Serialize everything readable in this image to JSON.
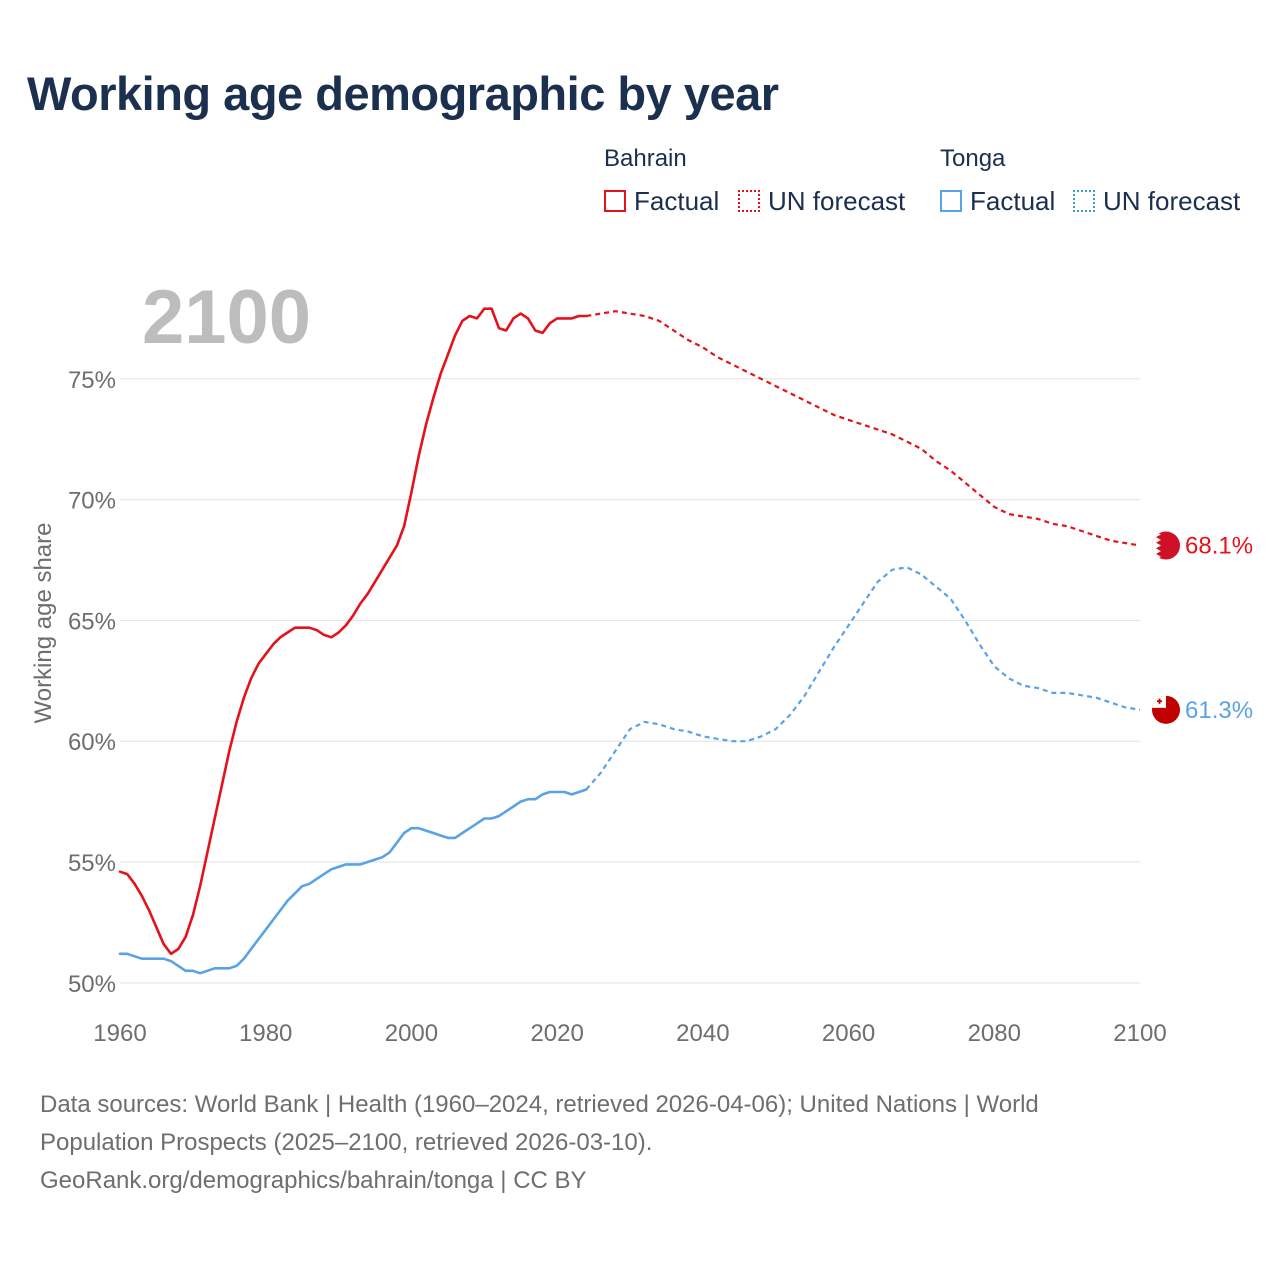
{
  "chart_data": {
    "type": "line",
    "title": "Working age demographic by year",
    "ylabel": "Working age share",
    "xlabel": "",
    "xlim": [
      1960,
      2100
    ],
    "ylim": [
      49,
      80
    ],
    "x_ticks": [
      "1960",
      "1980",
      "2000",
      "2020",
      "2040",
      "2060",
      "2080",
      "2100"
    ],
    "y_ticks": [
      "50%",
      "55%",
      "60%",
      "65%",
      "70%",
      "75%"
    ],
    "year_watermark": "2100",
    "legend": {
      "groups": [
        {
          "title": "Bahrain",
          "items": [
            {
              "label": "Factual"
            },
            {
              "label": "UN forecast"
            }
          ]
        },
        {
          "title": "Tonga",
          "items": [
            {
              "label": "Factual"
            },
            {
              "label": "UN forecast"
            }
          ]
        }
      ]
    },
    "series": [
      {
        "name": "Bahrain",
        "color": "#e3121b",
        "end_label": "68.1%",
        "factual_x": [
          1960,
          1961,
          1962,
          1963,
          1964,
          1965,
          1966,
          1967,
          1968,
          1969,
          1970,
          1971,
          1972,
          1973,
          1974,
          1975,
          1976,
          1977,
          1978,
          1979,
          1980,
          1981,
          1982,
          1983,
          1984,
          1985,
          1986,
          1987,
          1988,
          1989,
          1990,
          1991,
          1992,
          1993,
          1994,
          1995,
          1996,
          1997,
          1998,
          1999,
          2000,
          2001,
          2002,
          2003,
          2004,
          2005,
          2006,
          2007,
          2008,
          2009,
          2010,
          2011,
          2012,
          2013,
          2014,
          2015,
          2016,
          2017,
          2018,
          2019,
          2020,
          2021,
          2022,
          2023,
          2024
        ],
        "factual_y": [
          54.6,
          54.5,
          54.1,
          53.6,
          53.0,
          52.3,
          51.6,
          51.2,
          51.4,
          51.9,
          52.8,
          54.0,
          55.4,
          56.8,
          58.2,
          59.6,
          60.8,
          61.8,
          62.6,
          63.2,
          63.6,
          64.0,
          64.3,
          64.5,
          64.7,
          64.7,
          64.7,
          64.6,
          64.4,
          64.3,
          64.5,
          64.8,
          65.2,
          65.7,
          66.1,
          66.6,
          67.1,
          67.6,
          68.1,
          68.9,
          70.3,
          71.8,
          73.1,
          74.2,
          75.2,
          76.0,
          76.8,
          77.4,
          77.6,
          77.5,
          77.9,
          77.9,
          77.1,
          77.0,
          77.5,
          77.7,
          77.5,
          77.0,
          76.9,
          77.3,
          77.5,
          77.5,
          77.5,
          77.6,
          77.6
        ],
        "forecast_x": [
          2024,
          2026,
          2028,
          2030,
          2032,
          2034,
          2036,
          2038,
          2040,
          2042,
          2044,
          2046,
          2048,
          2050,
          2052,
          2054,
          2056,
          2058,
          2060,
          2062,
          2064,
          2066,
          2068,
          2070,
          2072,
          2074,
          2076,
          2078,
          2080,
          2082,
          2084,
          2086,
          2088,
          2090,
          2092,
          2094,
          2096,
          2098,
          2100
        ],
        "forecast_y": [
          77.6,
          77.7,
          77.8,
          77.7,
          77.6,
          77.4,
          77.0,
          76.6,
          76.3,
          75.9,
          75.6,
          75.3,
          75.0,
          74.7,
          74.4,
          74.1,
          73.8,
          73.5,
          73.3,
          73.1,
          72.9,
          72.7,
          72.4,
          72.1,
          71.6,
          71.2,
          70.7,
          70.2,
          69.7,
          69.4,
          69.3,
          69.2,
          69.0,
          68.9,
          68.7,
          68.5,
          68.3,
          68.2,
          68.1
        ]
      },
      {
        "name": "Tonga",
        "color": "#5aa2e6",
        "end_label": "61.3%",
        "factual_x": [
          1960,
          1961,
          1962,
          1963,
          1964,
          1965,
          1966,
          1967,
          1968,
          1969,
          1970,
          1971,
          1972,
          1973,
          1974,
          1975,
          1976,
          1977,
          1978,
          1979,
          1980,
          1981,
          1982,
          1983,
          1984,
          1985,
          1986,
          1987,
          1988,
          1989,
          1990,
          1991,
          1992,
          1993,
          1994,
          1995,
          1996,
          1997,
          1998,
          1999,
          2000,
          2001,
          2002,
          2003,
          2004,
          2005,
          2006,
          2007,
          2008,
          2009,
          2010,
          2011,
          2012,
          2013,
          2014,
          2015,
          2016,
          2017,
          2018,
          2019,
          2020,
          2021,
          2022,
          2023,
          2024
        ],
        "factual_y": [
          51.2,
          51.2,
          51.1,
          51.0,
          51.0,
          51.0,
          51.0,
          50.9,
          50.7,
          50.5,
          50.5,
          50.4,
          50.5,
          50.6,
          50.6,
          50.6,
          50.7,
          51.0,
          51.4,
          51.8,
          52.2,
          52.6,
          53.0,
          53.4,
          53.7,
          54.0,
          54.1,
          54.3,
          54.5,
          54.7,
          54.8,
          54.9,
          54.9,
          54.9,
          55.0,
          55.1,
          55.2,
          55.4,
          55.8,
          56.2,
          56.4,
          56.4,
          56.3,
          56.2,
          56.1,
          56.0,
          56.0,
          56.2,
          56.4,
          56.6,
          56.8,
          56.8,
          56.9,
          57.1,
          57.3,
          57.5,
          57.6,
          57.6,
          57.8,
          57.9,
          57.9,
          57.9,
          57.8,
          57.9,
          58.0
        ],
        "forecast_x": [
          2024,
          2026,
          2028,
          2030,
          2032,
          2034,
          2036,
          2038,
          2040,
          2042,
          2044,
          2046,
          2048,
          2050,
          2052,
          2054,
          2056,
          2058,
          2060,
          2062,
          2064,
          2066,
          2068,
          2070,
          2072,
          2074,
          2076,
          2078,
          2080,
          2082,
          2084,
          2086,
          2088,
          2090,
          2092,
          2094,
          2096,
          2098,
          2100
        ],
        "forecast_y": [
          58.0,
          58.7,
          59.6,
          60.5,
          60.8,
          60.7,
          60.5,
          60.4,
          60.2,
          60.1,
          60.0,
          60.0,
          60.2,
          60.5,
          61.1,
          61.9,
          62.9,
          63.9,
          64.8,
          65.7,
          66.6,
          67.1,
          67.2,
          66.9,
          66.4,
          65.9,
          65.0,
          64.0,
          63.1,
          62.6,
          62.3,
          62.2,
          62.0,
          62.0,
          61.9,
          61.8,
          61.6,
          61.4,
          61.3
        ]
      }
    ]
  },
  "footer": {
    "sources_line1": "Data sources: World Bank | Health (1960–2024, retrieved 2026-04-06); United Nations | World",
    "sources_line2": "Population Prospects (2025–2100, retrieved 2026-03-10).",
    "credit": "GeoRank.org/demographics/bahrain/tonga | CC BY"
  }
}
